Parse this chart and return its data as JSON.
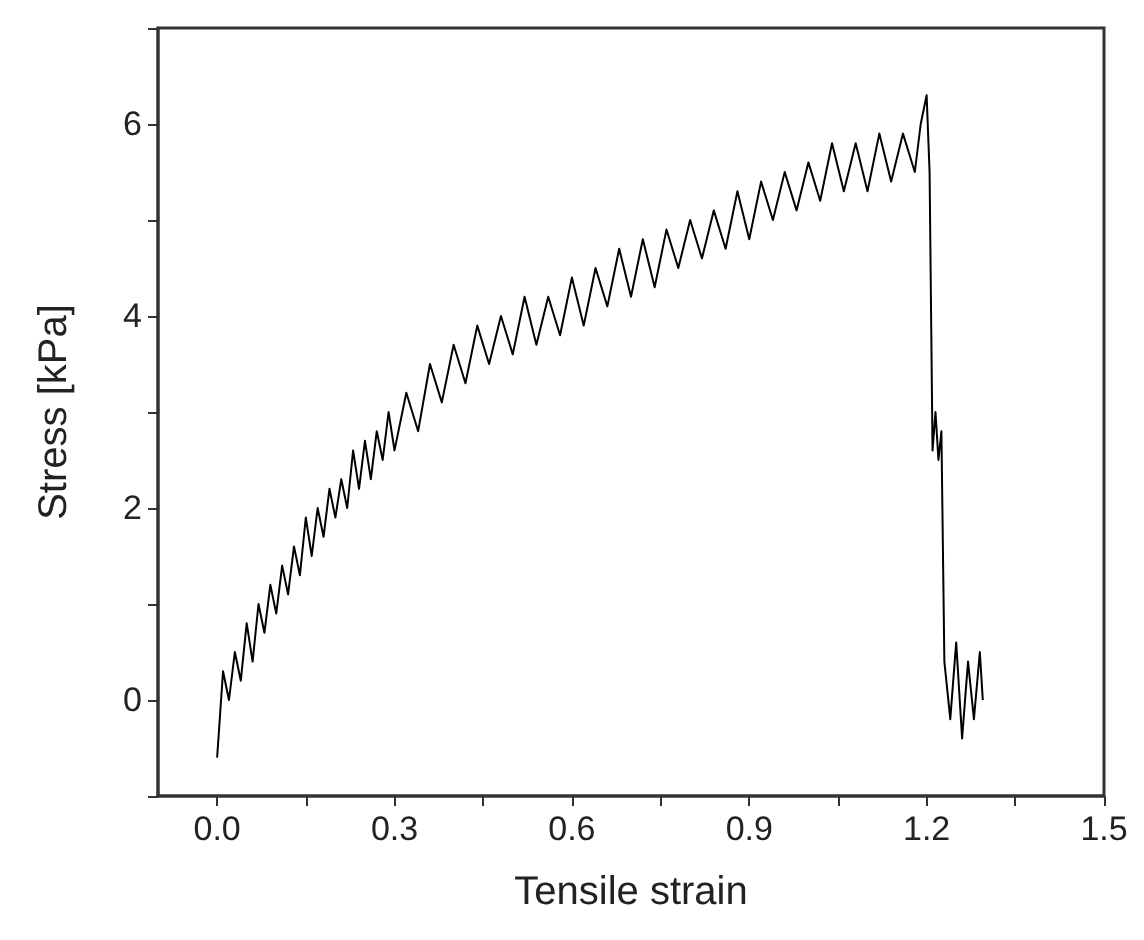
{
  "chart_data": {
    "type": "line",
    "xlabel": "Tensile strain",
    "ylabel": "Stress [kPa]",
    "xlim": [
      -0.1,
      1.5
    ],
    "xticks": [
      {
        "value": 0,
        "label": "0.0"
      },
      {
        "value": 0.15,
        "label": null
      },
      0.3,
      {
        "value": 0.45,
        "label": null
      },
      0.6,
      {
        "value": 0.75,
        "label": null
      },
      0.9,
      {
        "value": 1.05,
        "label": null
      },
      1.2,
      {
        "value": 1.35,
        "label": null
      },
      1.5
    ],
    "ylim": [
      -1,
      7
    ],
    "yticks": [
      {
        "value": -1,
        "label": null
      },
      0,
      {
        "value": 1,
        "label": null
      },
      2,
      {
        "value": 3,
        "label": null
      },
      4,
      {
        "value": 5,
        "label": null
      },
      6,
      {
        "value": 7,
        "label": null
      }
    ],
    "series": [
      {
        "color": "#000000",
        "x": [
          0,
          0.01,
          0.02,
          0.03,
          0.04,
          0.05,
          0.06,
          0.07,
          0.08,
          0.09,
          0.1,
          0.11,
          0.12,
          0.13,
          0.14,
          0.15,
          0.16,
          0.17,
          0.18,
          0.19,
          0.2,
          0.21,
          0.22,
          0.23,
          0.24,
          0.25,
          0.26,
          0.27,
          0.28,
          0.29,
          0.3,
          0.32,
          0.34,
          0.36,
          0.38,
          0.4,
          0.42,
          0.44,
          0.46,
          0.48,
          0.5,
          0.52,
          0.54,
          0.56,
          0.58,
          0.6,
          0.62,
          0.64,
          0.66,
          0.68,
          0.7,
          0.72,
          0.74,
          0.76,
          0.78,
          0.8,
          0.82,
          0.84,
          0.86,
          0.88,
          0.9,
          0.92,
          0.94,
          0.96,
          0.98,
          1.0,
          1.02,
          1.04,
          1.06,
          1.08,
          1.1,
          1.12,
          1.14,
          1.16,
          1.18,
          1.19,
          1.2,
          1.205,
          1.21,
          1.215,
          1.22,
          1.225,
          1.23,
          1.24,
          1.25,
          1.26,
          1.27,
          1.28,
          1.29,
          1.295
        ],
        "values": [
          -0.6,
          0.3,
          0.0,
          0.5,
          0.2,
          0.8,
          0.4,
          1.0,
          0.7,
          1.2,
          0.9,
          1.4,
          1.1,
          1.6,
          1.3,
          1.9,
          1.5,
          2.0,
          1.7,
          2.2,
          1.9,
          2.3,
          2.0,
          2.6,
          2.2,
          2.7,
          2.3,
          2.8,
          2.5,
          3.0,
          2.6,
          3.2,
          2.8,
          3.5,
          3.1,
          3.7,
          3.3,
          3.9,
          3.5,
          4.0,
          3.6,
          4.2,
          3.7,
          4.2,
          3.8,
          4.4,
          3.9,
          4.5,
          4.1,
          4.7,
          4.2,
          4.8,
          4.3,
          4.9,
          4.5,
          5.0,
          4.6,
          5.1,
          4.7,
          5.3,
          4.8,
          5.4,
          5.0,
          5.5,
          5.1,
          5.6,
          5.2,
          5.8,
          5.3,
          5.8,
          5.3,
          5.9,
          5.4,
          5.9,
          5.5,
          6.0,
          6.3,
          5.5,
          2.6,
          3.0,
          2.5,
          2.8,
          0.4,
          -0.2,
          0.6,
          -0.4,
          0.4,
          -0.2,
          0.5,
          0.0
        ]
      }
    ]
  }
}
